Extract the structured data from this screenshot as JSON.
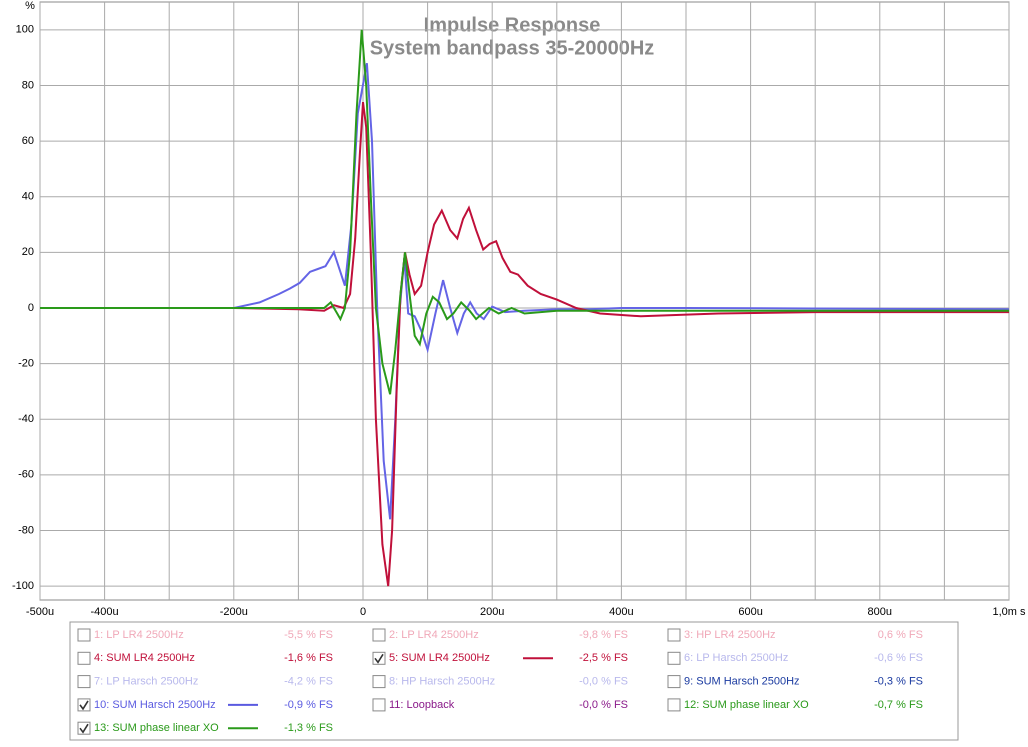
{
  "chart_data": {
    "type": "line",
    "title": "Impulse Response",
    "subtitle": "System bandpass 35-20000Hz",
    "y_label": "%",
    "xlim": [
      -500,
      1000
    ],
    "ylim": [
      -105,
      110
    ],
    "xticks": [
      {
        "value": -500,
        "label": "-500u"
      },
      {
        "value": -400,
        "label": "-400u"
      },
      {
        "value": -300,
        "label": null
      },
      {
        "value": -200,
        "label": "-200u"
      },
      {
        "value": -100,
        "label": null
      },
      {
        "value": 0,
        "label": "0"
      },
      {
        "value": 100,
        "label": null
      },
      {
        "value": 200,
        "label": "200u"
      },
      {
        "value": 300,
        "label": null
      },
      {
        "value": 400,
        "label": "400u"
      },
      {
        "value": 500,
        "label": null
      },
      {
        "value": 600,
        "label": "600u"
      },
      {
        "value": 700,
        "label": null
      },
      {
        "value": 800,
        "label": "800u"
      },
      {
        "value": 900,
        "label": null
      },
      {
        "value": 1000,
        "label": "1,0m s"
      }
    ],
    "yticks": [
      -100,
      -80,
      -60,
      -40,
      -20,
      0,
      20,
      40,
      60,
      80,
      100
    ],
    "grid": true,
    "series": [
      {
        "color": "#6464e6",
        "x": [
          -500,
          -200,
          -160,
          -130,
          -113,
          -98,
          -82,
          -70,
          -58,
          -45,
          -38,
          -28,
          -18,
          -8,
          6,
          14,
          22,
          32,
          42,
          50,
          57,
          64,
          70,
          80,
          90,
          100,
          112,
          124,
          135,
          146,
          156,
          166,
          176,
          187,
          200,
          220,
          250,
          300,
          350,
          400,
          500,
          1000
        ],
        "values": [
          0,
          0,
          2,
          5,
          7,
          9,
          13,
          14,
          15,
          20,
          15,
          8,
          30,
          70,
          88,
          60,
          0,
          -55,
          -76,
          -40,
          0,
          18,
          -2,
          -3,
          -8,
          -15,
          -2,
          10,
          0,
          -9,
          -2,
          2,
          -2,
          -4,
          0.5,
          -1.5,
          -1,
          -0.5,
          -0.5,
          0,
          0,
          -0.5
        ]
      },
      {
        "color": "#c0103a",
        "x": [
          -500,
          -200,
          -100,
          -60,
          -45,
          -30,
          -20,
          -12,
          -5,
          0,
          5,
          12,
          20,
          30,
          39,
          45,
          52,
          58,
          65,
          72,
          80,
          90,
          100,
          110,
          122,
          135,
          146,
          155,
          164,
          175,
          186,
          196,
          206,
          216,
          228,
          240,
          255,
          275,
          300,
          330,
          367,
          430,
          550,
          700,
          1000
        ],
        "values": [
          0,
          0,
          -0.5,
          -1,
          1,
          0,
          5,
          25,
          55,
          74,
          65,
          20,
          -40,
          -85,
          -100,
          -80,
          -30,
          5,
          20,
          12,
          5,
          8,
          20,
          30,
          35,
          28,
          25,
          32,
          36,
          28,
          21,
          23,
          24,
          18,
          13,
          12,
          8,
          5,
          3,
          0,
          -2,
          -3,
          -2,
          -1.5,
          -1.5
        ]
      },
      {
        "color": "#2a9a1a",
        "x": [
          -500,
          -200,
          -100,
          -60,
          -50,
          -40,
          -35,
          -28,
          -20,
          -10,
          -2,
          5,
          12,
          20,
          30,
          42,
          50,
          58,
          65,
          72,
          80,
          88,
          98,
          108,
          118,
          130,
          140,
          152,
          165,
          175,
          185,
          195,
          210,
          230,
          250,
          300,
          400,
          700,
          1000
        ],
        "values": [
          0,
          0,
          0,
          0,
          2,
          -2,
          -4,
          0,
          20,
          70,
          100,
          80,
          40,
          0,
          -20,
          -31,
          -15,
          5,
          20,
          5,
          -10,
          -13,
          -2,
          4,
          2,
          -4,
          -2,
          2,
          -1,
          -4,
          -2,
          0,
          -2,
          0,
          -2,
          -1,
          -1,
          -1,
          -1
        ]
      }
    ]
  },
  "legend": [
    {
      "label": "1: LP LR4 2500Hz",
      "level": "-5,5 % FS",
      "checked": false,
      "color": "#f0a8b8"
    },
    {
      "label": "2: LP LR4 2500Hz",
      "level": "-9,8 % FS",
      "checked": false,
      "color": "#f0a8b8"
    },
    {
      "label": "3: HP LR4 2500Hz",
      "level": "0,6 % FS",
      "checked": false,
      "color": "#f0a8b8"
    },
    {
      "label": "4: SUM LR4 2500Hz",
      "level": "-1,6 % FS",
      "checked": false,
      "color": "#c0103a"
    },
    {
      "label": "5: SUM LR4 2500Hz",
      "level": "-2,5 % FS",
      "checked": true,
      "color": "#c0103a"
    },
    {
      "label": "6: LP Harsch 2500Hz",
      "level": "-0,6 % FS",
      "checked": false,
      "color": "#b8b8ec"
    },
    {
      "label": "7: LP Harsch 2500Hz",
      "level": "-4,2 % FS",
      "checked": false,
      "color": "#b8b8ec"
    },
    {
      "label": "8: HP Harsch 2500Hz",
      "level": "-0,0 % FS",
      "checked": false,
      "color": "#b8b8ec"
    },
    {
      "label": "9: SUM Harsch 2500Hz",
      "level": "-0,3 % FS",
      "checked": false,
      "color": "#1a3aa0"
    },
    {
      "label": "10: SUM Harsch 2500Hz",
      "level": "-0,9 % FS",
      "checked": true,
      "color": "#5a5ae0"
    },
    {
      "label": "11: Loopback",
      "level": "-0,0 % FS",
      "checked": false,
      "color": "#8a1a8a"
    },
    {
      "label": "12: SUM phase linear XO",
      "level": "-0,7 % FS",
      "checked": false,
      "color": "#2a9a1a"
    },
    {
      "label": "13: SUM phase linear XO",
      "level": "-1,3 % FS",
      "checked": true,
      "color": "#2a9a1a"
    }
  ]
}
